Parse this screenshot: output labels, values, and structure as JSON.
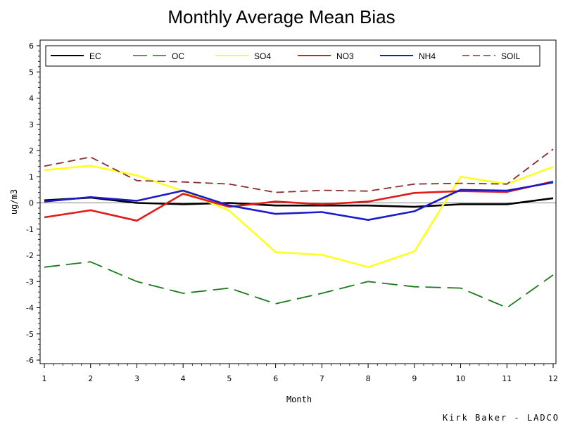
{
  "chart_data": {
    "type": "line",
    "title": "Monthly Average Mean Bias",
    "xlabel": "Month",
    "ylabel": "ug/m3",
    "x": [
      1,
      2,
      3,
      4,
      5,
      6,
      7,
      8,
      9,
      10,
      11,
      12
    ],
    "xlim": [
      1,
      12
    ],
    "ylim": [
      -6,
      6
    ],
    "xticks": [
      "1",
      "2",
      "3",
      "4",
      "5",
      "6",
      "7",
      "8",
      "9",
      "10",
      "11",
      "12"
    ],
    "yticks": [
      "-6",
      "-5",
      "-4",
      "-3",
      "-2",
      "-1",
      "0",
      "1",
      "2",
      "3",
      "4",
      "5",
      "6"
    ],
    "reference_line": 0,
    "grid": false,
    "legend_position": "top",
    "series": [
      {
        "name": "EC",
        "color": "#000000",
        "dash": "solid",
        "values": [
          0.1,
          0.2,
          0.0,
          -0.05,
          0.0,
          -0.1,
          -0.1,
          -0.1,
          -0.15,
          -0.05,
          -0.05,
          0.18
        ]
      },
      {
        "name": "OC",
        "color": "#1a7a1a",
        "dash": "dashed",
        "values": [
          -2.45,
          -2.25,
          -3.0,
          -3.45,
          -3.25,
          -3.85,
          -3.45,
          -3.0,
          -3.2,
          -3.25,
          -4.0,
          -2.75
        ]
      },
      {
        "name": "SO4",
        "color": "#ffff22",
        "dash": "solid",
        "values": [
          1.25,
          1.42,
          1.05,
          0.45,
          -0.3,
          -1.88,
          -1.98,
          -2.45,
          -1.85,
          1.0,
          0.72,
          1.38
        ]
      },
      {
        "name": "NO3",
        "color": "#e21a1a",
        "dash": "solid",
        "values": [
          -0.55,
          -0.28,
          -0.68,
          0.35,
          -0.15,
          0.05,
          -0.05,
          0.05,
          0.38,
          0.45,
          0.42,
          0.82
        ]
      },
      {
        "name": "NH4",
        "color": "#1a1acc",
        "dash": "solid",
        "values": [
          0.05,
          0.22,
          0.08,
          0.47,
          -0.1,
          -0.42,
          -0.35,
          -0.65,
          -0.32,
          0.5,
          0.47,
          0.78
        ]
      },
      {
        "name": "SOIL",
        "color": "#8b2e2e",
        "dash": "dashed",
        "values": [
          1.4,
          1.75,
          0.85,
          0.8,
          0.72,
          0.4,
          0.48,
          0.45,
          0.72,
          0.75,
          0.72,
          2.05
        ]
      }
    ]
  },
  "footer": "Kirk Baker - LADCO"
}
